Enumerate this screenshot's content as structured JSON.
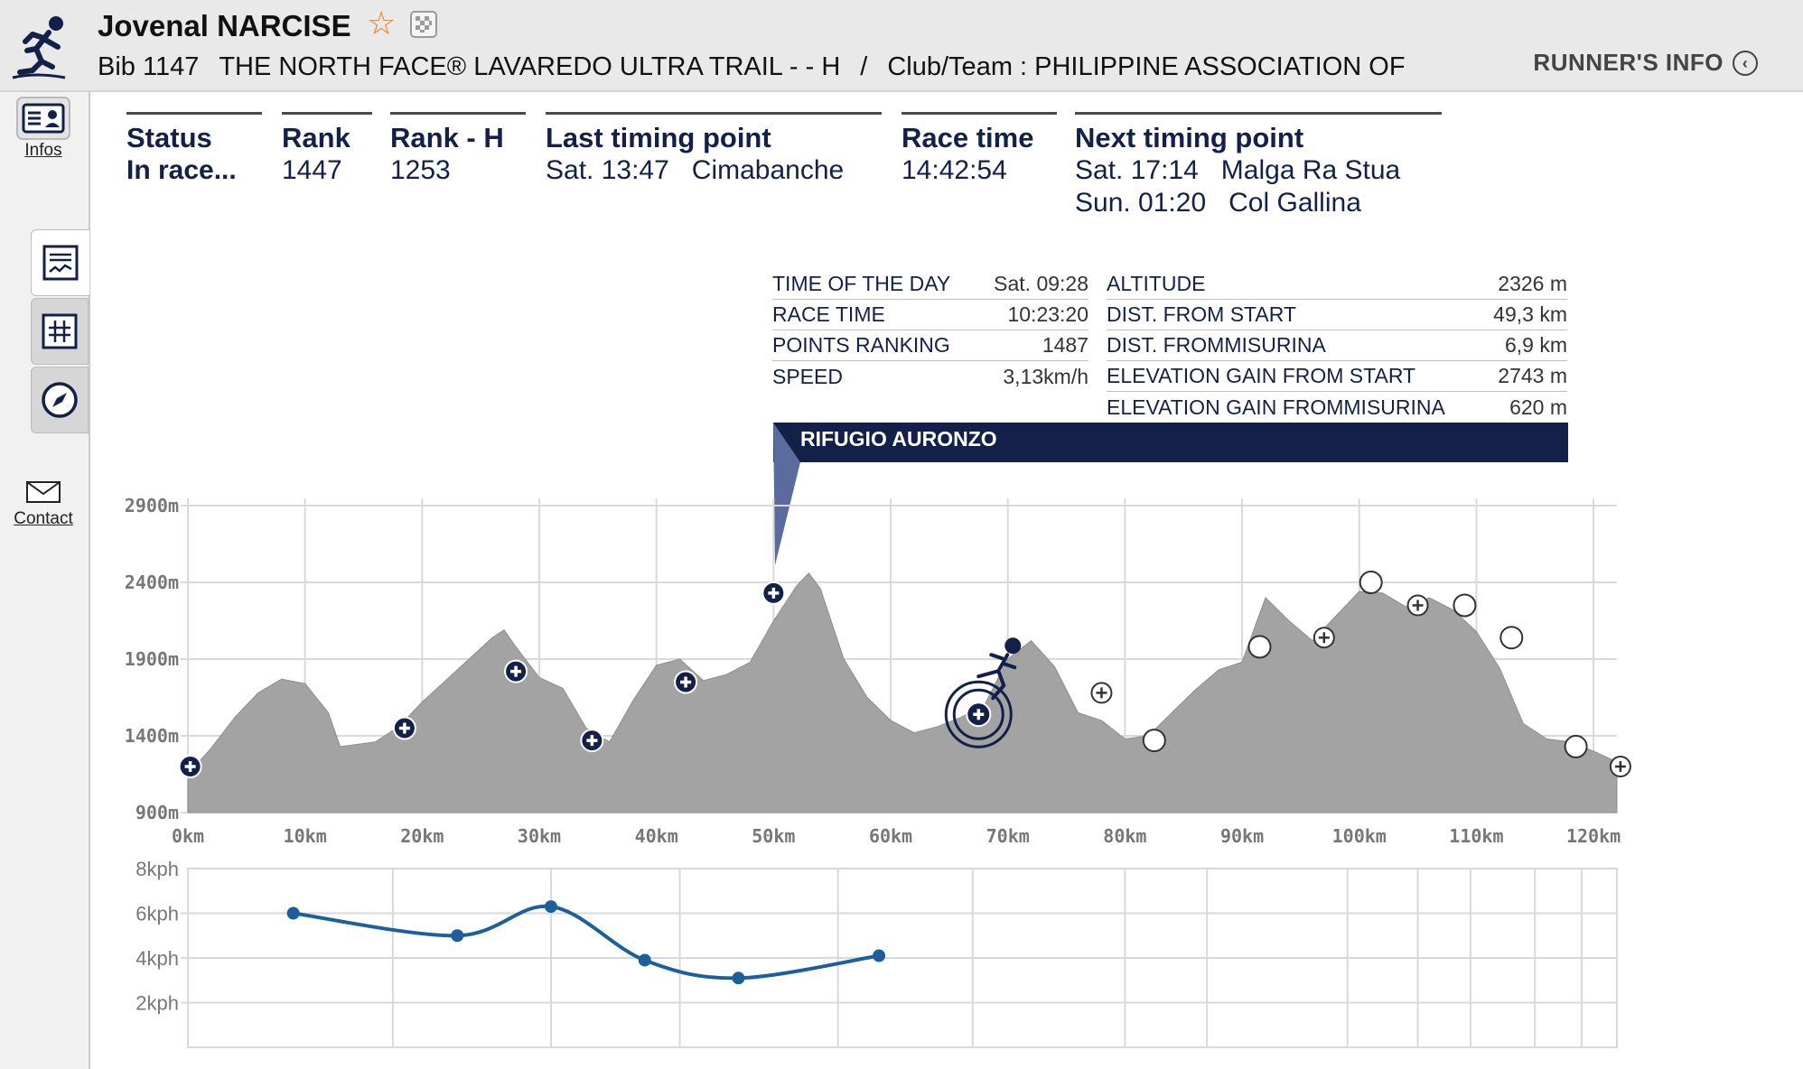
{
  "runner": {
    "name": "Jovenal NARCISE",
    "bib": "Bib 1147",
    "race": "THE NORTH FACE® LAVAREDO ULTRA TRAIL - - H",
    "separator": "/",
    "club": "Club/Team : PHILIPPINE ASSOCIATION OF"
  },
  "header": {
    "runners_info": "RUNNER'S INFO"
  },
  "sidebar": {
    "infos": "Infos",
    "contact": "Contact"
  },
  "stats": {
    "status_label": "Status",
    "status_value": "In race...",
    "rank_label": "Rank",
    "rank_value": "1447",
    "rank_h_label": "Rank - H",
    "rank_h_value": "1253",
    "last_label": "Last timing point",
    "last_time": "Sat. 13:47",
    "last_place": "Cimabanche",
    "race_time_label": "Race time",
    "race_time_value": "14:42:54",
    "next_label": "Next timing point",
    "next": [
      {
        "time": "Sat. 17:14",
        "place": "Malga Ra Stua"
      },
      {
        "time": "Sun. 01:20",
        "place": "Col Gallina"
      }
    ]
  },
  "checkpoint_info": {
    "left": [
      {
        "k": "TIME OF THE DAY",
        "v": "Sat. 09:28"
      },
      {
        "k": "RACE TIME",
        "v": "10:23:20"
      },
      {
        "k": "POINTS RANKING",
        "v": "1487"
      },
      {
        "k": "SPEED",
        "v": "3,13km/h"
      }
    ],
    "right": [
      {
        "k": "ALTITUDE",
        "v": "2326 m"
      },
      {
        "k": "DIST. FROM START",
        "v": "49,3 km"
      },
      {
        "k": "DIST. FROMMISURINA",
        "v": "6,9 km"
      },
      {
        "k": "ELEVATION GAIN FROM START",
        "v": "2743 m"
      },
      {
        "k": "ELEVATION GAIN FROMMISURINA",
        "v": "620 m"
      }
    ],
    "name": "RIFUGIO AURONZO"
  },
  "colors": {
    "navy": "#13214a",
    "profile_fill": "#a3a3a3",
    "speed_line": "#1d5f9c",
    "star": "#f27a1a"
  },
  "chart_data": [
    {
      "type": "area",
      "x_tick_labels": [
        "0km",
        "10km",
        "20km",
        "30km",
        "40km",
        "50km",
        "60km",
        "70km",
        "80km",
        "90km",
        "100km",
        "110km",
        "120km"
      ],
      "y_tick_labels": [
        "900m",
        "1400m",
        "1900m",
        "2400m",
        "2900m"
      ],
      "xlim": [
        0,
        122
      ],
      "ylim": [
        900,
        2900
      ],
      "grid": true,
      "profile": {
        "x": [
          0,
          2,
          4,
          6,
          8,
          10,
          12,
          13,
          14,
          16,
          18,
          20,
          22,
          24,
          26,
          27,
          28,
          30,
          32,
          34,
          36,
          38,
          40,
          42,
          44,
          46,
          48,
          50,
          52,
          53,
          54,
          56,
          58,
          60,
          62,
          64,
          66,
          68,
          70,
          72,
          74,
          76,
          78,
          80,
          82,
          84,
          86,
          88,
          90,
          92,
          94,
          96,
          98,
          100,
          102,
          104,
          106,
          108,
          110,
          112,
          114,
          116,
          118,
          120,
          122
        ],
        "y": [
          1150,
          1320,
          1520,
          1680,
          1770,
          1740,
          1550,
          1330,
          1340,
          1360,
          1460,
          1620,
          1760,
          1900,
          2040,
          2090,
          1980,
          1780,
          1710,
          1450,
          1360,
          1630,
          1860,
          1900,
          1760,
          1800,
          1880,
          2150,
          2380,
          2460,
          2360,
          1900,
          1650,
          1500,
          1420,
          1460,
          1520,
          1600,
          1900,
          2020,
          1850,
          1550,
          1500,
          1380,
          1400,
          1550,
          1700,
          1830,
          1880,
          2300,
          2150,
          2020,
          2180,
          2340,
          2330,
          2240,
          2300,
          2220,
          2080,
          1840,
          1480,
          1380,
          1360,
          1300,
          1230
        ]
      },
      "points": [
        {
          "x": 0.2,
          "y": 1200,
          "kind": "passed"
        },
        {
          "x": 18.5,
          "y": 1450,
          "kind": "passed"
        },
        {
          "x": 28,
          "y": 1820,
          "kind": "passed"
        },
        {
          "x": 34.5,
          "y": 1370,
          "kind": "passed"
        },
        {
          "x": 42.5,
          "y": 1750,
          "kind": "passed"
        },
        {
          "x": 50,
          "y": 2330,
          "kind": "passed"
        },
        {
          "x": 67.5,
          "y": 1540,
          "kind": "current"
        },
        {
          "x": 78,
          "y": 1680,
          "kind": "aid"
        },
        {
          "x": 82.5,
          "y": 1370,
          "kind": "timing"
        },
        {
          "x": 91.5,
          "y": 1980,
          "kind": "timing"
        },
        {
          "x": 97,
          "y": 2040,
          "kind": "aid"
        },
        {
          "x": 101,
          "y": 2400,
          "kind": "timing"
        },
        {
          "x": 105,
          "y": 2250,
          "kind": "aid"
        },
        {
          "x": 109,
          "y": 2250,
          "kind": "timing"
        },
        {
          "x": 113,
          "y": 2040,
          "kind": "timing"
        },
        {
          "x": 118.5,
          "y": 1330,
          "kind": "timing"
        },
        {
          "x": 122.3,
          "y": 1200,
          "kind": "aid"
        }
      ]
    },
    {
      "type": "line",
      "y_tick_labels": [
        "8kph",
        "6kph",
        "4kph",
        "2kph"
      ],
      "ylim": [
        0,
        8
      ],
      "xlim": [
        0,
        122
      ],
      "grid": true,
      "series": [
        {
          "x": [
            9,
            23,
            31,
            39,
            47,
            59
          ],
          "values": [
            6.0,
            5.0,
            6.3,
            3.9,
            3.1,
            4.1
          ]
        }
      ]
    }
  ]
}
